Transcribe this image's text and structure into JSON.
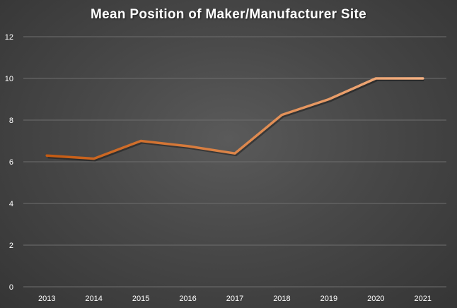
{
  "chart_data": {
    "type": "line",
    "title": "Mean Position of Maker/Manufacturer Site",
    "xlabel": "",
    "ylabel": "",
    "categories": [
      "2013",
      "2014",
      "2015",
      "2016",
      "2017",
      "2018",
      "2019",
      "2020",
      "2021"
    ],
    "series": [
      {
        "values": [
          6.3,
          6.15,
          7.0,
          6.75,
          6.4,
          8.25,
          9.0,
          10.0,
          10.0
        ]
      }
    ],
    "ylim": [
      0,
      12
    ],
    "yticks": [
      0,
      2,
      4,
      6,
      8,
      10,
      12
    ],
    "grid": true,
    "legend": "none",
    "colors": {
      "line_start": "#c55a11",
      "line_end": "#f4b183",
      "grid": "#6e6e6e",
      "text": "#ffffff"
    }
  }
}
